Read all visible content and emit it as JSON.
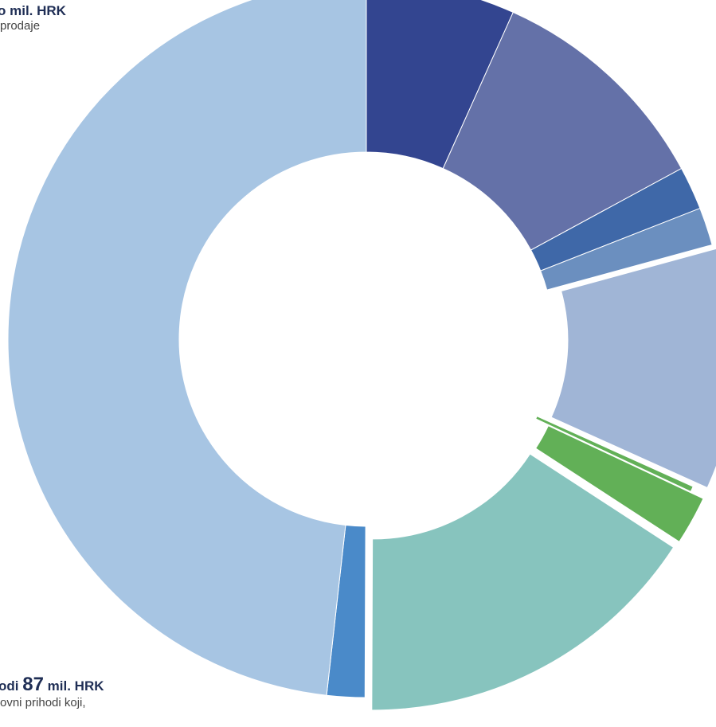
{
  "labels": {
    "top": {
      "title_text": "o mil. HRK",
      "subtitle": "prodaje"
    },
    "bottom": {
      "title_prefix": "odi",
      "title_value": "87",
      "title_unit": "mil. HRK",
      "subtitle": "ovni prihodi koji,"
    }
  },
  "chart_data": {
    "type": "pie",
    "style": "donut",
    "title": "",
    "slices": [
      {
        "value": 5.5,
        "color": "#334590",
        "exploded": false
      },
      {
        "value": 8.5,
        "color": "#6471a8",
        "exploded": false
      },
      {
        "value": 1.6,
        "color": "#3f68a8",
        "exploded": false
      },
      {
        "value": 1.4,
        "color": "#6b8fbf",
        "exploded": false
      },
      {
        "value": 9.0,
        "color": "#a0b5d6",
        "exploded": true
      },
      {
        "value": 0.2,
        "color": "#62b057",
        "exploded": false
      },
      {
        "value": 1.8,
        "color": "#62b057",
        "exploded": true
      },
      {
        "value": 13.0,
        "color": "#87c4be",
        "exploded": true
      },
      {
        "value": 1.4,
        "color": "#4a8ac9",
        "exploded": false
      },
      {
        "value": 39.5,
        "color": "#a7c5e3",
        "exploded": false
      }
    ]
  }
}
